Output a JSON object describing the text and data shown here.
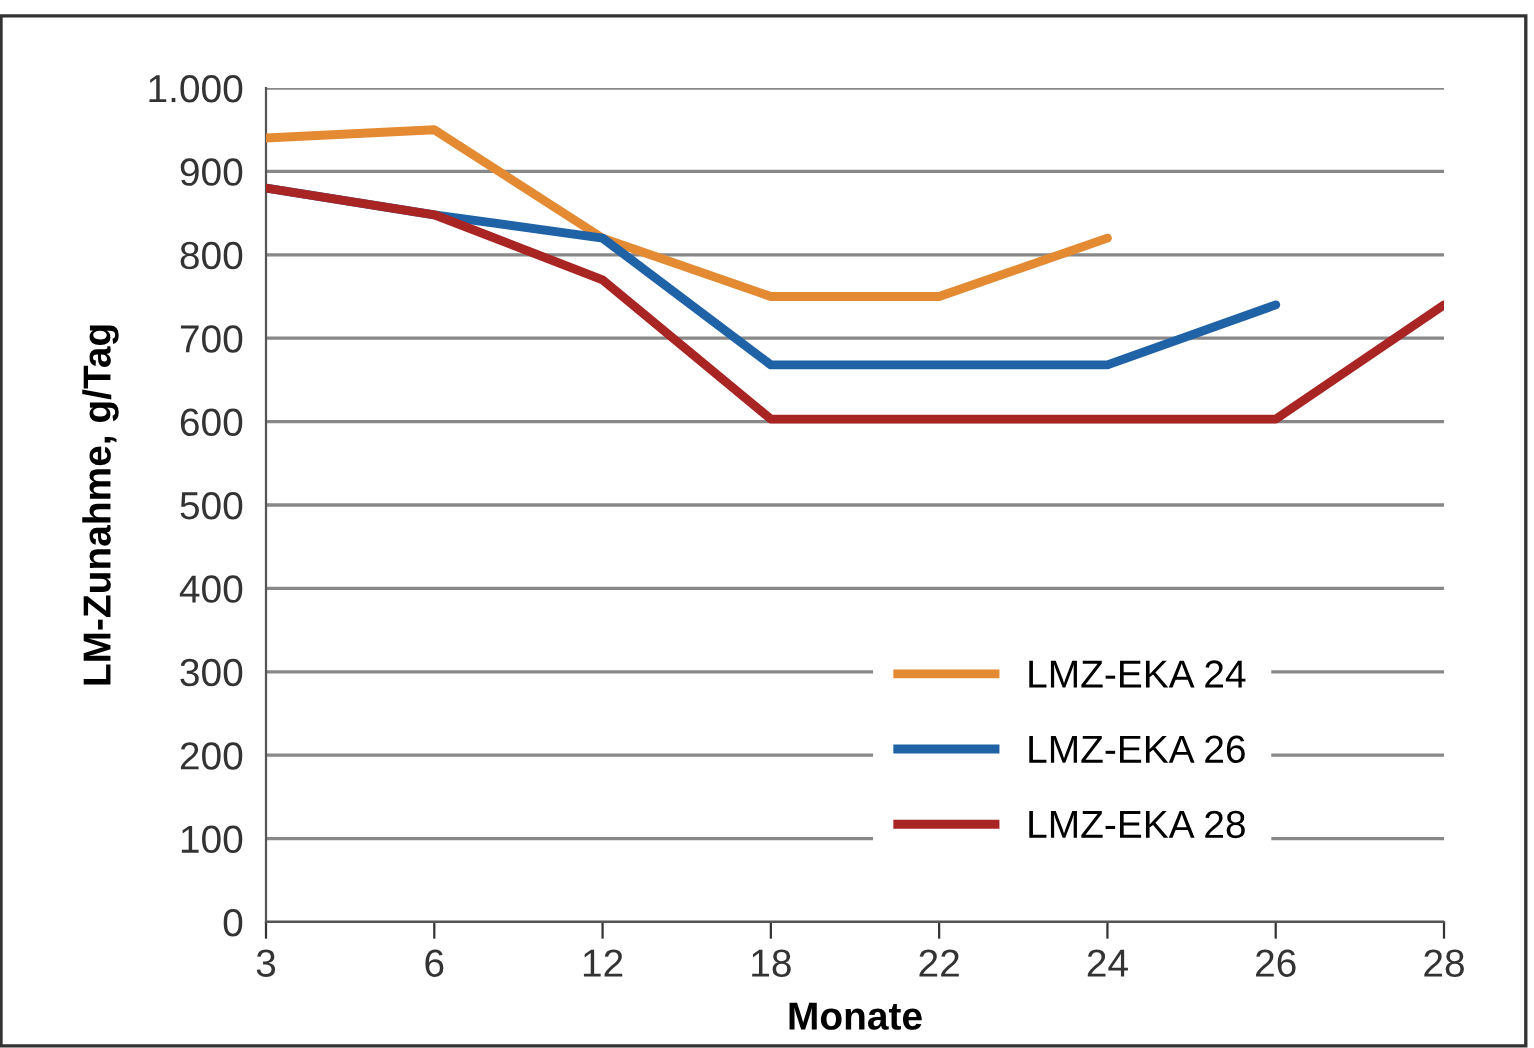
{
  "chart_data": {
    "type": "line",
    "xlabel": "Monate",
    "ylabel": "LM-Zunahme, g/Tag",
    "categories": [
      "3",
      "6",
      "12",
      "18",
      "22",
      "24",
      "26",
      "28"
    ],
    "series": [
      {
        "name": "LMZ-EKA 24",
        "color": "#e48a33",
        "values": [
          940,
          950,
          820,
          750,
          750,
          820,
          null,
          null
        ]
      },
      {
        "name": "LMZ-EKA 26",
        "color": "#1f62a5",
        "values": [
          880,
          848,
          820,
          668,
          668,
          668,
          740,
          null
        ]
      },
      {
        "name": "LMZ-EKA 28",
        "color": "#a92524",
        "values": [
          880,
          848,
          770,
          603,
          603,
          603,
          603,
          740
        ]
      }
    ],
    "ylim": [
      0,
      1000
    ],
    "yticks": [
      0,
      100,
      200,
      300,
      400,
      500,
      600,
      700,
      800,
      900,
      {
        "value": 1000,
        "label": "1.000"
      }
    ],
    "grid": "y",
    "legend": "bottom right",
    "marker": "none",
    "line_style": "solid"
  }
}
